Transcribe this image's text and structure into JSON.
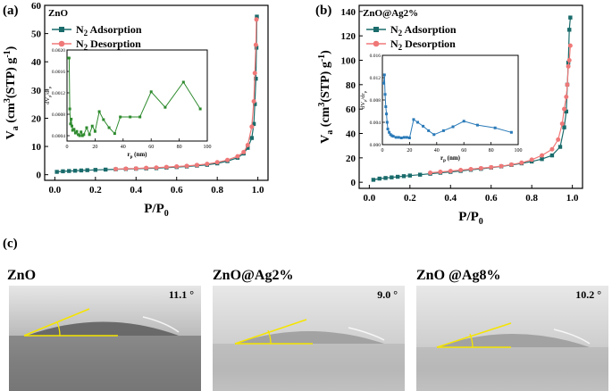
{
  "chart_data": [
    {
      "type": "line",
      "panel_label": "(a)",
      "title": "ZnO",
      "xlabel": "P/P",
      "xlabel_sub": "0",
      "ylabel": "V",
      "ylabel_sub": "a",
      "ylabel_rest": " (cm",
      "ylabel_sup1": "3",
      "ylabel_rest2": "(STP) g",
      "ylabel_sup2": "-1",
      "ylabel_rest3": ")",
      "xlim": [
        -0.05,
        1.05
      ],
      "ylim": [
        -2,
        60
      ],
      "xticks": [
        "0.0",
        "0.2",
        "0.4",
        "0.6",
        "0.8",
        "1.0"
      ],
      "yticks": [
        "0",
        "10",
        "20",
        "30",
        "40",
        "50",
        "60"
      ],
      "legend_placement": "top-left",
      "series": [
        {
          "name": "N",
          "name_sub": "2",
          "name_rest": " Adsorption",
          "color": "#1a6b6b",
          "marker": "square",
          "x": [
            0.01,
            0.04,
            0.07,
            0.1,
            0.13,
            0.16,
            0.2,
            0.25,
            0.3,
            0.35,
            0.4,
            0.45,
            0.5,
            0.55,
            0.6,
            0.65,
            0.7,
            0.75,
            0.8,
            0.85,
            0.9,
            0.93,
            0.95,
            0.97,
            0.98,
            0.985,
            0.99,
            0.993,
            0.995
          ],
          "y": [
            1.0,
            1.2,
            1.3,
            1.4,
            1.5,
            1.6,
            1.7,
            1.8,
            1.9,
            2.0,
            2.1,
            2.2,
            2.3,
            2.5,
            2.7,
            2.9,
            3.2,
            3.5,
            4.0,
            4.8,
            6.0,
            7.5,
            9.5,
            13,
            18,
            25,
            34,
            45,
            56
          ]
        },
        {
          "name": "N",
          "name_sub": "2",
          "name_rest": " Desorption",
          "color": "#f07878",
          "marker": "circle",
          "x": [
            0.993,
            0.99,
            0.985,
            0.98,
            0.97,
            0.95,
            0.93,
            0.9,
            0.85,
            0.8,
            0.75,
            0.7,
            0.65,
            0.6,
            0.55,
            0.5,
            0.45,
            0.4,
            0.35,
            0.3
          ],
          "y": [
            55,
            46,
            36,
            26,
            17,
            10.5,
            8,
            6.5,
            5.2,
            4.4,
            3.8,
            3.4,
            3.1,
            2.9,
            2.7,
            2.5,
            2.4,
            2.2,
            2.1,
            2.0
          ]
        }
      ],
      "inset": {
        "type": "line",
        "xlabel": "r",
        "xlabel_sub": "p",
        "xlabel_rest": " (nm)",
        "ylabel": "dV",
        "ylabel_sub": "p",
        "ylabel_rest": "/dr",
        "ylabel_sub2": "p",
        "xlim": [
          0,
          100
        ],
        "ylim": [
          0.0003,
          0.002
        ],
        "xticks": [
          "0",
          "20",
          "40",
          "60",
          "80",
          "100"
        ],
        "yticks": [
          "0.0004",
          "0.0008",
          "0.0012",
          "0.0016",
          "0.0020"
        ],
        "color": "#2e8b2e",
        "x": [
          1,
          1.5,
          2,
          2.5,
          3,
          3.5,
          4,
          5,
          6,
          7,
          8,
          9,
          10,
          11,
          12,
          14,
          16,
          18,
          20,
          23,
          26,
          30,
          34,
          38,
          45,
          52,
          60,
          70,
          83,
          95
        ],
        "y": [
          0.00185,
          0.00185,
          0.0009,
          0.00062,
          0.00071,
          0.00058,
          0.0005,
          0.00052,
          0.00045,
          0.00048,
          0.00042,
          0.0004,
          0.00047,
          0.0004,
          0.00042,
          0.00055,
          0.00042,
          0.00058,
          0.00048,
          0.00085,
          0.0007,
          0.00055,
          0.00044,
          0.00075,
          0.00075,
          0.00075,
          0.00122,
          0.00093,
          0.0014,
          0.0009
        ]
      }
    },
    {
      "type": "line",
      "panel_label": "(b)",
      "title": "ZnO@Ag2%",
      "xlabel": "P/P",
      "xlabel_sub": "0",
      "ylabel": "V",
      "ylabel_sub": "a",
      "ylabel_rest": " (cm",
      "ylabel_sup1": "3",
      "ylabel_rest2": "(STP) g",
      "ylabel_sup2": "-1",
      "ylabel_rest3": ")",
      "xlim": [
        -0.05,
        1.05
      ],
      "ylim": [
        -5,
        145
      ],
      "xticks": [
        "0.0",
        "0.2",
        "0.4",
        "0.6",
        "0.8",
        "1.0"
      ],
      "yticks": [
        "0",
        "20",
        "40",
        "60",
        "80",
        "100",
        "120",
        "140"
      ],
      "legend_placement": "top-left",
      "series": [
        {
          "name": "N",
          "name_sub": "2",
          "name_rest": " Adsorption",
          "color": "#1a6b6b",
          "marker": "square",
          "x": [
            0.02,
            0.05,
            0.08,
            0.11,
            0.14,
            0.17,
            0.2,
            0.25,
            0.3,
            0.35,
            0.4,
            0.45,
            0.5,
            0.55,
            0.6,
            0.65,
            0.7,
            0.75,
            0.8,
            0.85,
            0.9,
            0.94,
            0.96,
            0.97,
            0.975,
            0.98,
            0.985,
            0.99
          ],
          "y": [
            2,
            3,
            3.5,
            4,
            4.5,
            5,
            5.5,
            6.2,
            7,
            7.8,
            8.5,
            9.3,
            10.2,
            11,
            12,
            13,
            14.2,
            15.5,
            17,
            19,
            22,
            29,
            45,
            58,
            80,
            98,
            125,
            135
          ]
        },
        {
          "name": "N",
          "name_sub": "2",
          "name_rest": " Desorption",
          "color": "#f07878",
          "marker": "circle",
          "x": [
            0.99,
            0.985,
            0.98,
            0.975,
            0.97,
            0.96,
            0.95,
            0.93,
            0.9,
            0.85,
            0.8,
            0.75,
            0.7,
            0.65,
            0.6,
            0.55,
            0.5,
            0.45,
            0.4,
            0.35,
            0.3
          ],
          "y": [
            112,
            100,
            95,
            80,
            70,
            60,
            48,
            35,
            27,
            22,
            18.5,
            16,
            14.5,
            13.2,
            12.3,
            11.5,
            10.7,
            10,
            9.2,
            8.5,
            7.8
          ]
        }
      ],
      "inset": {
        "type": "line",
        "xlabel": "r",
        "xlabel_sub": "p",
        "xlabel_rest": " (nm)",
        "ylabel": "dV",
        "ylabel_sub": "p",
        "ylabel_rest": "/dr",
        "ylabel_sub2": "p",
        "xlim": [
          0,
          100
        ],
        "ylim": [
          0.0,
          0.016
        ],
        "xticks": [
          "0",
          "20",
          "40",
          "60",
          "80",
          "100"
        ],
        "yticks": [
          "0.000",
          "0.004",
          "0.008",
          "0.012",
          "0.016"
        ],
        "color": "#2a7ab8",
        "x": [
          1,
          1.5,
          2,
          2.5,
          3,
          3.5,
          4,
          5,
          6,
          7,
          8,
          10,
          12,
          14,
          16,
          18,
          20,
          23,
          26,
          30,
          34,
          38,
          45,
          52,
          60,
          70,
          83,
          95
        ],
        "y": [
          0.011,
          0.0125,
          0.009,
          0.0068,
          0.0055,
          0.004,
          0.0028,
          0.0022,
          0.0018,
          0.0016,
          0.0015,
          0.0013,
          0.0013,
          0.0012,
          0.0013,
          0.0013,
          0.0012,
          0.0045,
          0.004,
          0.0033,
          0.0025,
          0.0018,
          0.0025,
          0.0032,
          0.0042,
          0.0035,
          0.003,
          0.0022
        ]
      }
    }
  ],
  "photos": {
    "panel_label": "(c)",
    "items": [
      {
        "label": "ZnO",
        "angle": "11.1 °"
      },
      {
        "label": "ZnO@Ag2%",
        "angle": "9.0 °"
      },
      {
        "label": "ZnO @Ag8%",
        "angle": "10.2 °"
      }
    ],
    "line_color": "#f5e400"
  }
}
